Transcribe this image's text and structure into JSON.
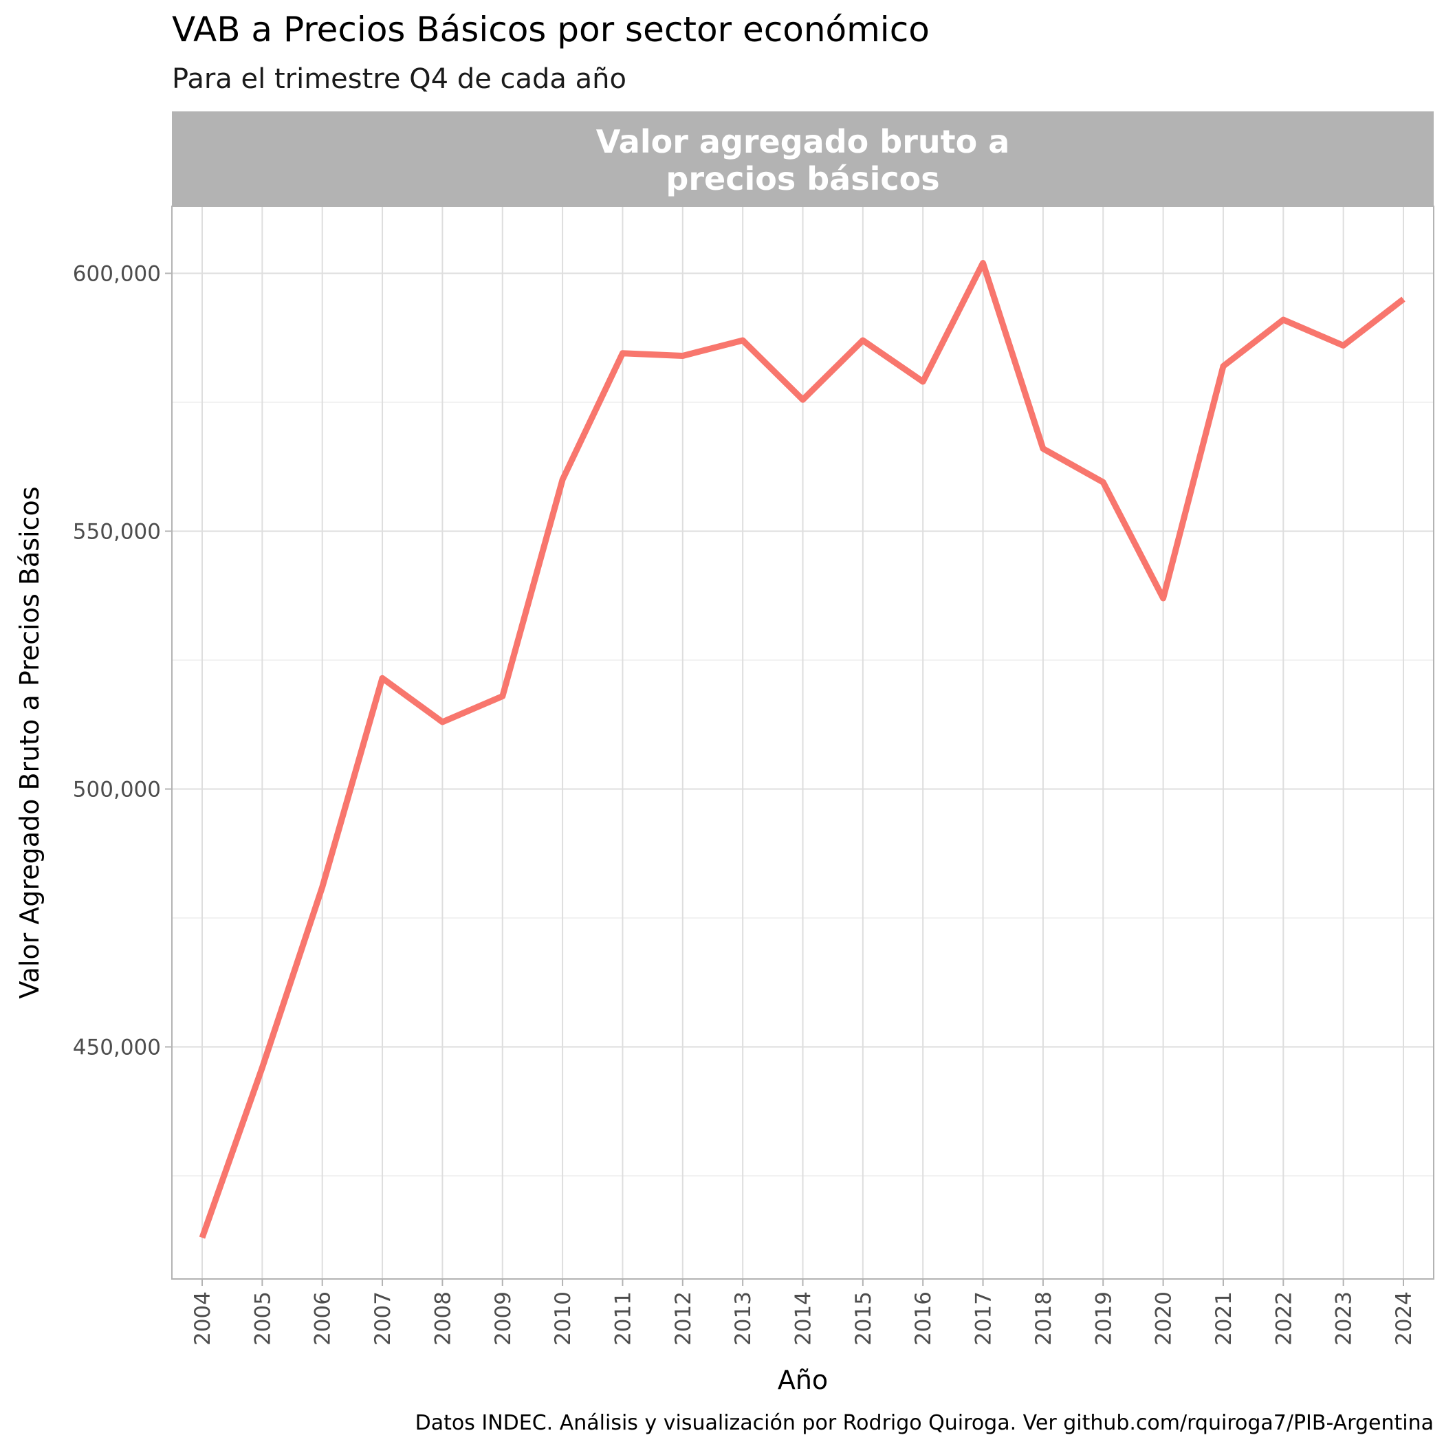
{
  "chart_data": {
    "type": "line",
    "title": "VAB a Precios Básicos por sector económico",
    "subtitle": "Para el trimestre Q4 de cada año",
    "facet_label_lines": [
      "Valor agregado bruto a",
      "precios básicos"
    ],
    "xlabel": "Año",
    "ylabel": "Valor Agregado Bruto a Precios Básicos",
    "caption": "Datos INDEC. Análisis y visualización por Rodrigo Quiroga. Ver github.com/rquiroga7/PIB-Argentina",
    "x": [
      2004,
      2005,
      2006,
      2007,
      2008,
      2009,
      2010,
      2011,
      2012,
      2013,
      2014,
      2015,
      2016,
      2017,
      2018,
      2019,
      2020,
      2021,
      2022,
      2023,
      2024
    ],
    "x_tick_labels": [
      "2004",
      "2005",
      "2006",
      "2007",
      "2008",
      "2009",
      "2010",
      "2011",
      "2012",
      "2013",
      "2014",
      "2015",
      "2016",
      "2017",
      "2018",
      "2019",
      "2020",
      "2021",
      "2022",
      "2023",
      "2024"
    ],
    "series": [
      {
        "values": [
          413000,
          446000,
          481000,
          521500,
          513000,
          518000,
          560000,
          584500,
          584000,
          587000,
          575500,
          587000,
          579000,
          602000,
          566000,
          559500,
          537000,
          582000,
          591000,
          586000,
          595000
        ],
        "color": "#F8766D"
      }
    ],
    "ylim": [
      405000,
      613000
    ],
    "y_ticks": [
      450000,
      500000,
      550000,
      600000
    ],
    "y_tick_labels": [
      "450,000",
      "500,000",
      "550,000",
      "600,000"
    ],
    "y_minor_ticks": [
      425000,
      475000,
      525000,
      575000
    ],
    "grid": true,
    "legend": "none",
    "colors": {
      "panel_border": "#b3b3b3",
      "grid_major": "#dedede",
      "grid_minor": "#eeeeee",
      "strip_fill": "#b3b3b3"
    }
  }
}
